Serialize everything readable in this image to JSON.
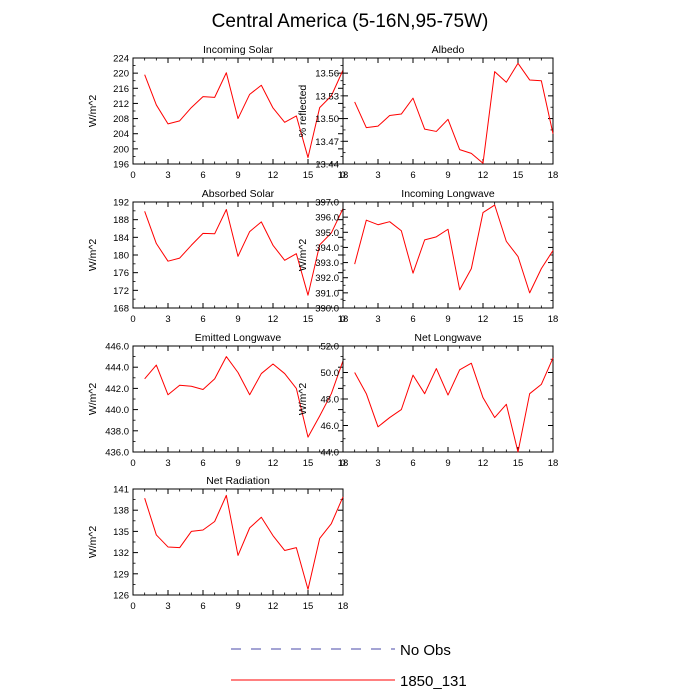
{
  "title": "Central America (5-16N,95-75W)",
  "colors": {
    "series": "#ff0000",
    "obs": "#4a4aa8",
    "axis": "#000000"
  },
  "legend": [
    {
      "label": "No Obs",
      "style": "dashed",
      "color": "#4a4aa8"
    },
    {
      "label": "1850_131",
      "style": "solid",
      "color": "#ff0000"
    }
  ],
  "chart_data": [
    {
      "type": "line",
      "title": "Incoming Solar",
      "ylabel": "W/m^2",
      "xlim": [
        0,
        18
      ],
      "xticks": [
        0,
        3,
        6,
        9,
        12,
        15,
        18
      ],
      "ylim": [
        196,
        224
      ],
      "yticks": [
        196,
        200,
        204,
        208,
        212,
        216,
        220,
        224
      ],
      "ytick_labels": [
        "196",
        "200",
        "204",
        "208",
        "212",
        "216",
        "220",
        "224"
      ],
      "x": [
        1,
        2,
        3,
        4,
        5,
        6,
        7,
        8,
        9,
        10,
        11,
        12,
        13,
        14,
        15,
        16,
        17,
        18
      ],
      "series": [
        {
          "name": "1850_131",
          "values": [
            219.6,
            211.6,
            206.6,
            207.4,
            210.9,
            213.8,
            213.6,
            220.1,
            208.0,
            214.4,
            216.8,
            210.8,
            207.0,
            208.7,
            197.7,
            210.9,
            214.0,
            220.8
          ]
        }
      ]
    },
    {
      "type": "line",
      "title": "Albedo",
      "ylabel": "% reflected",
      "xlim": [
        0,
        18
      ],
      "xticks": [
        0,
        3,
        6,
        9,
        12,
        15,
        18
      ],
      "ylim": [
        13.44,
        13.58
      ],
      "yticks": [
        13.44,
        13.47,
        13.5,
        13.53,
        13.56
      ],
      "ytick_labels": [
        "13.44",
        "13.47",
        "13.50",
        "13.53",
        "13.56"
      ],
      "x": [
        1,
        2,
        3,
        4,
        5,
        6,
        7,
        8,
        9,
        10,
        11,
        12,
        13,
        14,
        15,
        16,
        17,
        18
      ],
      "series": [
        {
          "name": "1850_131",
          "values": [
            13.522,
            13.488,
            13.49,
            13.504,
            13.506,
            13.527,
            13.486,
            13.483,
            13.499,
            13.459,
            13.454,
            13.441,
            13.562,
            13.548,
            13.573,
            13.551,
            13.55,
            13.48
          ]
        }
      ]
    },
    {
      "type": "line",
      "title": "Absorbed Solar",
      "ylabel": "W/m^2",
      "xlim": [
        0,
        18
      ],
      "xticks": [
        0,
        3,
        6,
        9,
        12,
        15,
        18
      ],
      "ylim": [
        168,
        192
      ],
      "yticks": [
        168,
        172,
        176,
        180,
        184,
        188,
        192
      ],
      "ytick_labels": [
        "168",
        "172",
        "176",
        "180",
        "184",
        "188",
        "192"
      ],
      "x": [
        1,
        2,
        3,
        4,
        5,
        6,
        7,
        8,
        9,
        10,
        11,
        12,
        13,
        14,
        15,
        16,
        17,
        18
      ],
      "series": [
        {
          "name": "1850_131",
          "values": [
            189.9,
            182.6,
            178.6,
            179.3,
            182.2,
            184.9,
            184.8,
            190.3,
            179.7,
            185.3,
            187.5,
            182.2,
            178.8,
            180.3,
            170.9,
            182.3,
            185.0,
            190.5
          ]
        }
      ]
    },
    {
      "type": "line",
      "title": "Incoming Longwave",
      "ylabel": "W/m^2",
      "xlim": [
        0,
        18
      ],
      "xticks": [
        0,
        3,
        6,
        9,
        12,
        15,
        18
      ],
      "ylim": [
        390,
        397
      ],
      "yticks": [
        390,
        391,
        392,
        393,
        394,
        395,
        396,
        397
      ],
      "ytick_labels": [
        "390.0",
        "391.0",
        "392.0",
        "393.0",
        "394.0",
        "395.0",
        "396.0",
        "397.0"
      ],
      "x": [
        1,
        2,
        3,
        4,
        5,
        6,
        7,
        8,
        9,
        10,
        11,
        12,
        13,
        14,
        15,
        16,
        17,
        18
      ],
      "series": [
        {
          "name": "1850_131",
          "values": [
            392.9,
            395.8,
            395.5,
            395.7,
            395.1,
            392.3,
            394.5,
            394.7,
            395.2,
            391.2,
            392.6,
            396.3,
            396.8,
            394.4,
            393.4,
            391.0,
            392.6,
            393.8
          ]
        }
      ]
    },
    {
      "type": "line",
      "title": "Emitted Longwave",
      "ylabel": "W/m^2",
      "xlim": [
        0,
        18
      ],
      "xticks": [
        0,
        3,
        6,
        9,
        12,
        15,
        18
      ],
      "ylim": [
        436,
        446
      ],
      "yticks": [
        436,
        438,
        440,
        442,
        444,
        446
      ],
      "ytick_labels": [
        "436.0",
        "438.0",
        "440.0",
        "442.0",
        "444.0",
        "446.0"
      ],
      "x": [
        1,
        2,
        3,
        4,
        5,
        6,
        7,
        8,
        9,
        10,
        11,
        12,
        13,
        14,
        15,
        16,
        17,
        18
      ],
      "series": [
        {
          "name": "1850_131",
          "values": [
            442.9,
            444.2,
            441.4,
            442.3,
            442.2,
            441.9,
            442.9,
            445.0,
            443.5,
            441.4,
            443.4,
            444.3,
            443.4,
            442.0,
            437.4,
            439.4,
            441.5,
            444.6
          ]
        }
      ]
    },
    {
      "type": "line",
      "title": "Net Longwave",
      "ylabel": "W/m^2",
      "xlim": [
        0,
        18
      ],
      "xticks": [
        0,
        3,
        6,
        9,
        12,
        15,
        18
      ],
      "ylim": [
        44,
        52
      ],
      "yticks": [
        44,
        46,
        48,
        50,
        52
      ],
      "ytick_labels": [
        "44.0",
        "46.0",
        "48.0",
        "50.0",
        "52.0"
      ],
      "x": [
        1,
        2,
        3,
        4,
        5,
        6,
        7,
        8,
        9,
        10,
        11,
        12,
        13,
        14,
        15,
        16,
        17,
        18
      ],
      "series": [
        {
          "name": "1850_131",
          "values": [
            50.0,
            48.4,
            45.9,
            46.6,
            47.2,
            49.8,
            48.4,
            50.3,
            48.3,
            50.2,
            50.7,
            48.1,
            46.6,
            47.6,
            44.0,
            48.4,
            49.1,
            51.1
          ]
        }
      ]
    },
    {
      "type": "line",
      "title": "Net Radiation",
      "ylabel": "W/m^2",
      "xlim": [
        0,
        18
      ],
      "xticks": [
        0,
        3,
        6,
        9,
        12,
        15,
        18
      ],
      "ylim": [
        126,
        141
      ],
      "yticks": [
        126,
        129,
        132,
        135,
        138,
        141
      ],
      "ytick_labels": [
        "126",
        "129",
        "132",
        "135",
        "138",
        "141"
      ],
      "x": [
        1,
        2,
        3,
        4,
        5,
        6,
        7,
        8,
        9,
        10,
        11,
        12,
        13,
        14,
        15,
        16,
        17,
        18
      ],
      "series": [
        {
          "name": "1850_131",
          "values": [
            139.7,
            134.5,
            132.8,
            132.7,
            135.0,
            135.2,
            136.4,
            140.1,
            131.6,
            135.5,
            137.0,
            134.4,
            132.3,
            132.7,
            126.8,
            134.0,
            136.1,
            139.9
          ]
        }
      ]
    }
  ]
}
